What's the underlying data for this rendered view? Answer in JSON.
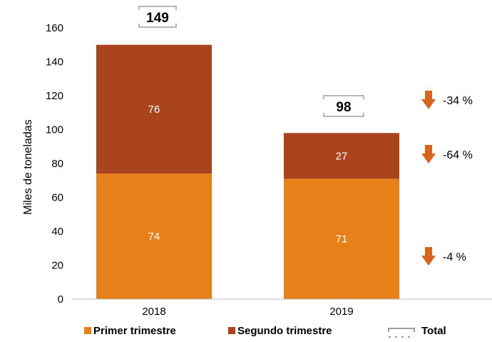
{
  "chart_data": {
    "type": "bar",
    "stacked": true,
    "categories": [
      "2018",
      "2019"
    ],
    "series": [
      {
        "name": "Primer trimestre",
        "values": [
          74,
          71
        ],
        "color": "#E8801A"
      },
      {
        "name": "Segundo trimestre",
        "values": [
          76,
          27
        ],
        "color": "#A9441D"
      }
    ],
    "totals": [
      149,
      98
    ],
    "totals_legend": "Total",
    "ylabel": "Miles de toneladas",
    "xlabel": "",
    "ylim": [
      0,
      160
    ],
    "yticks": [
      0,
      20,
      40,
      60,
      80,
      100,
      120,
      140,
      160
    ],
    "changes": [
      {
        "label": "-34 %",
        "refers_to": "Total",
        "direction": "down"
      },
      {
        "label": "-64 %",
        "refers_to": "Segundo trimestre",
        "direction": "down"
      },
      {
        "label": "-4 %",
        "refers_to": "Primer trimestre",
        "direction": "down"
      }
    ],
    "arrow_color": "#D9641E",
    "grid": false,
    "legend_position": "bottom"
  }
}
